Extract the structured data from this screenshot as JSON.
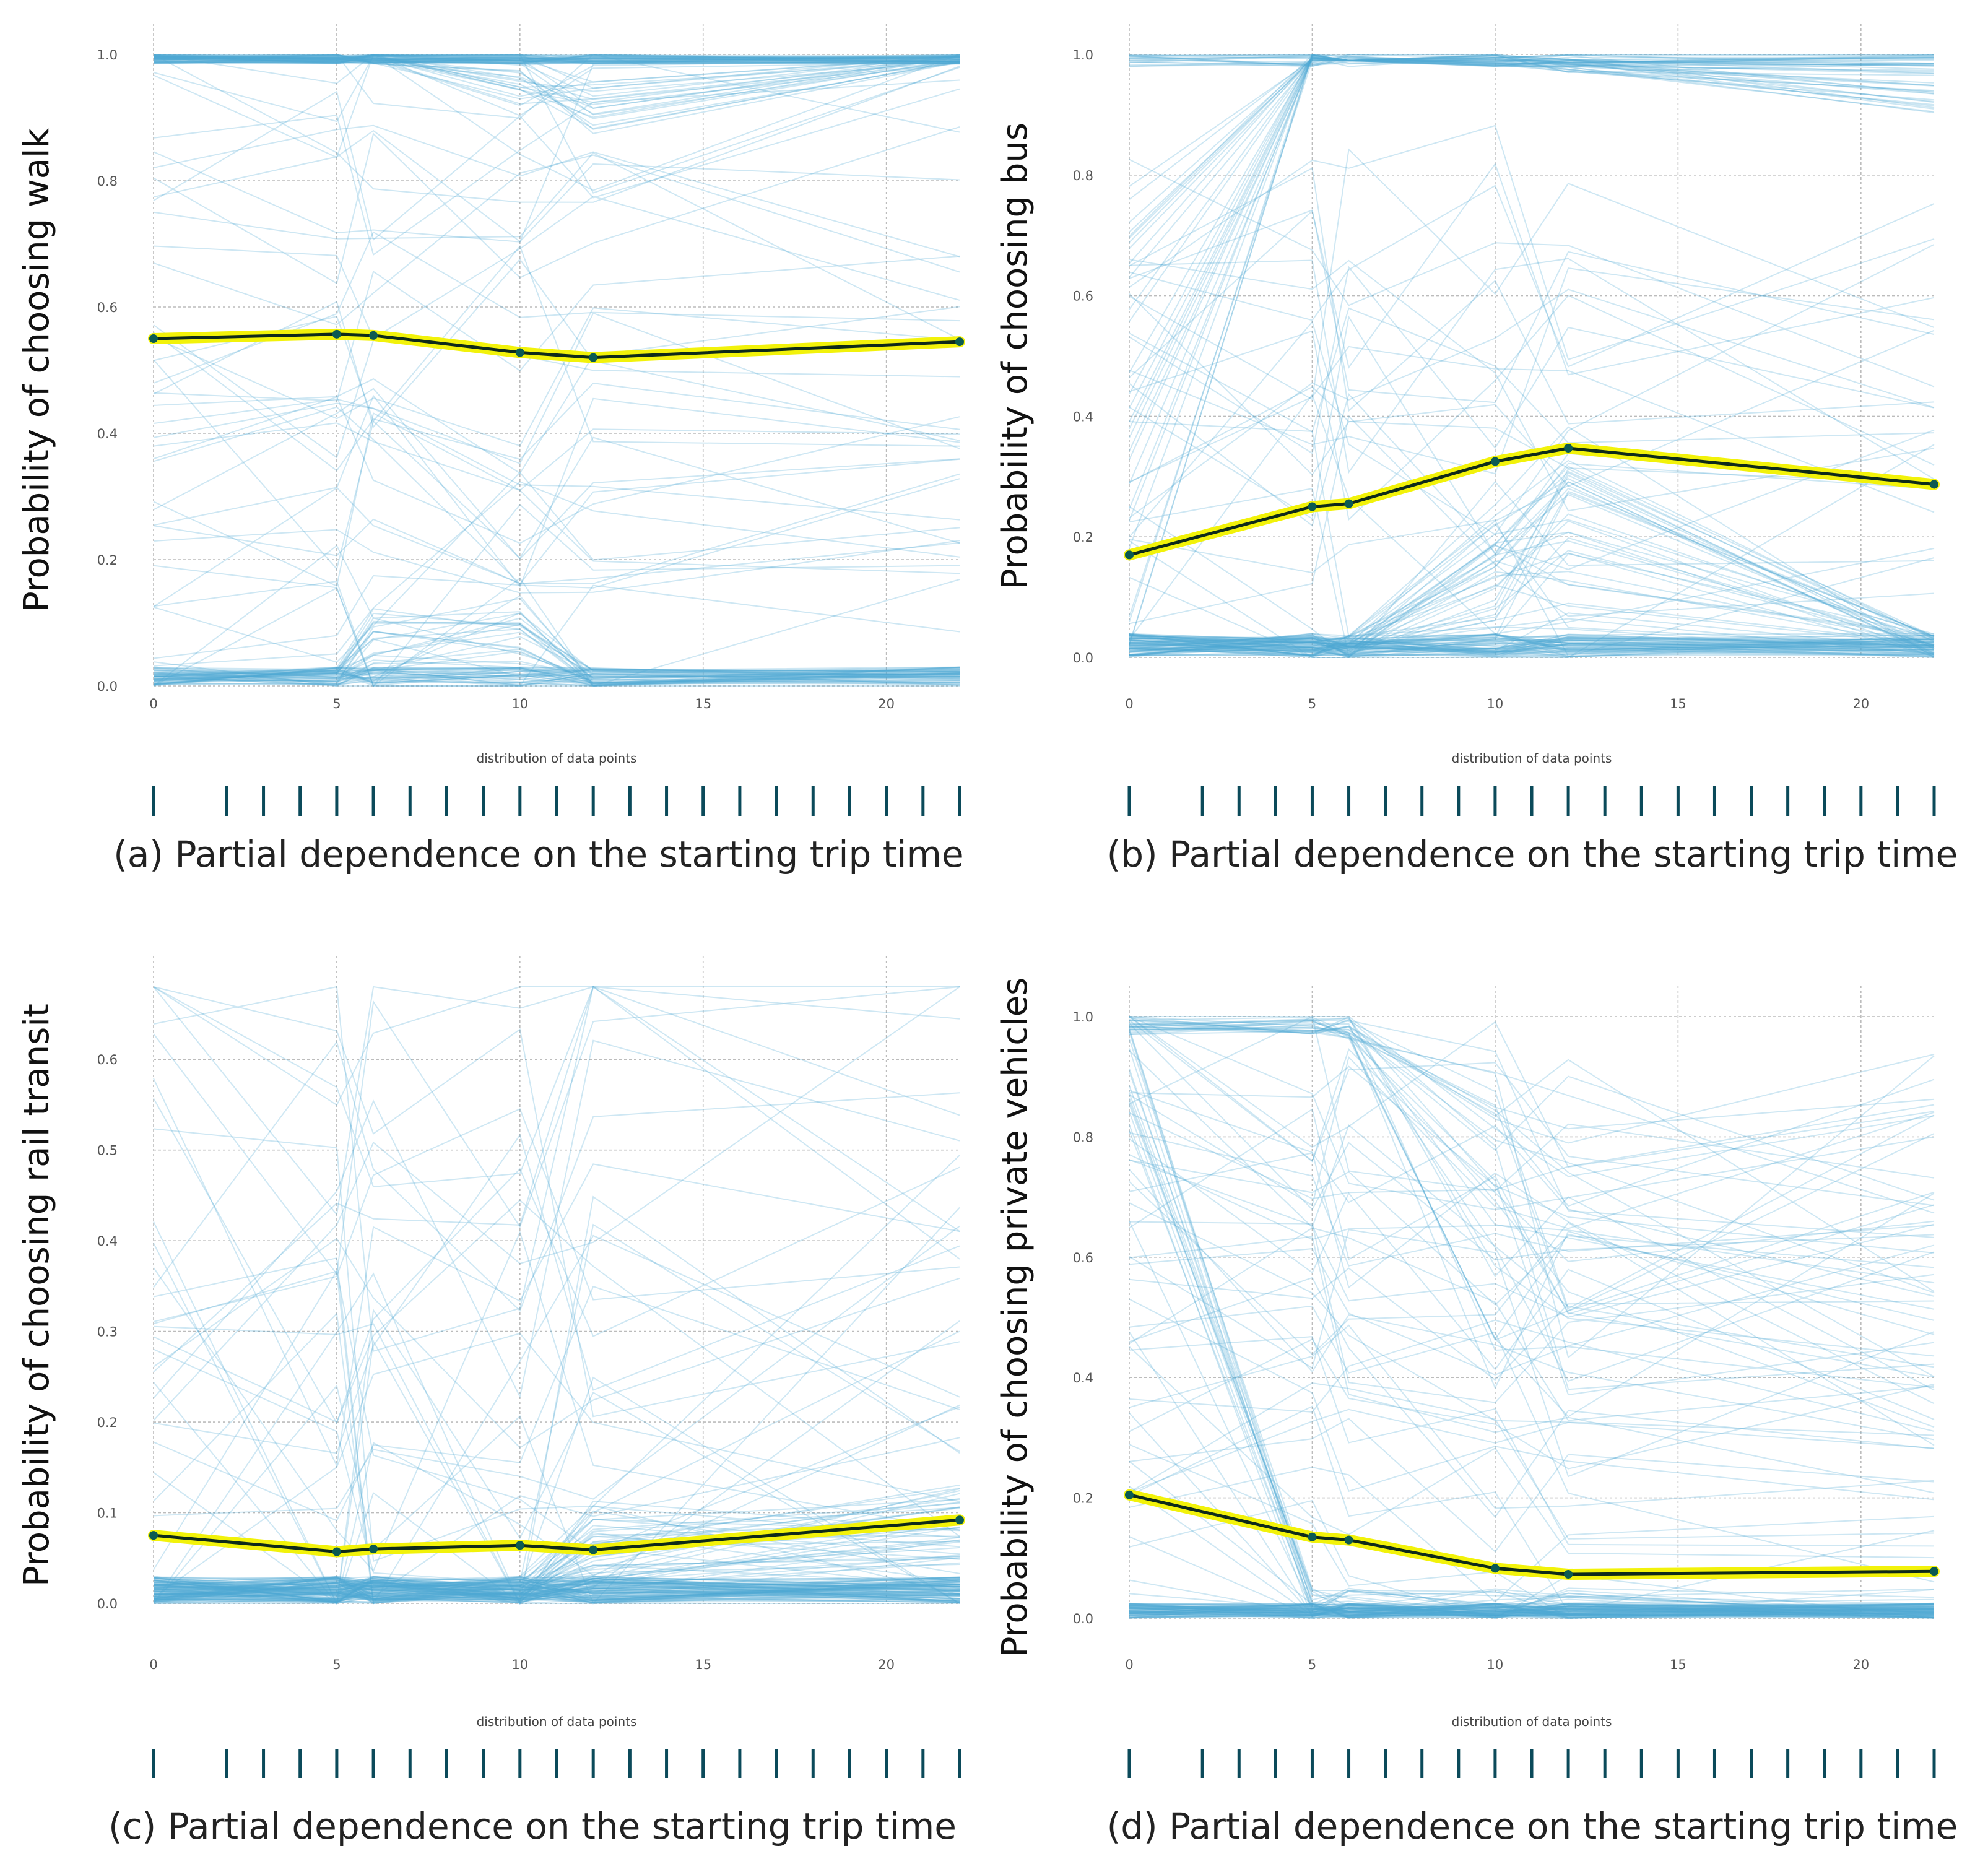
{
  "figure": {
    "ice_line_color": "#4fa8d5",
    "pd_line_color": "#0e2a1a",
    "pd_highlight_color": "#f2f20a",
    "pd_point_color": "#0b5a52",
    "rug_color": "#0b4a5a",
    "grid_color": "#bcbcbc"
  },
  "chart_data": [
    {
      "id": "a",
      "type": "line",
      "caption": "(a) Partial dependence on the starting trip time",
      "ylabel": "Probability of choosing walk",
      "xlabel": "distribution of data points",
      "x_grid_ticks": [
        0,
        5,
        10,
        15,
        20
      ],
      "x_tick_labels": [
        "0",
        "5",
        "10",
        "15",
        "20"
      ],
      "xlim": [
        0,
        22
      ],
      "y_ticks": [
        0.0,
        0.2,
        0.4,
        0.6,
        0.8,
        1.0
      ],
      "y_tick_labels": [
        "0.0",
        "0.2",
        "0.4",
        "0.6",
        "0.8",
        "1.0"
      ],
      "ylim": [
        0.0,
        1.0
      ],
      "rug_x": [
        0,
        2,
        3,
        4,
        5,
        6,
        7,
        8,
        9,
        10,
        11,
        12,
        13,
        14,
        15,
        16,
        17,
        18,
        19,
        20,
        21,
        22
      ],
      "series": [
        {
          "name": "partial dependence",
          "x": [
            0,
            5,
            6,
            10,
            12,
            22
          ],
          "y": [
            0.55,
            0.557,
            0.555,
            0.528,
            0.52,
            0.545
          ]
        }
      ],
      "ice_profile": "walk"
    },
    {
      "id": "b",
      "type": "line",
      "caption": "(b) Partial dependence on the starting trip time",
      "ylabel": "Probability of choosing bus",
      "xlabel": "distribution of data points",
      "x_grid_ticks": [
        0,
        5,
        10,
        15,
        20
      ],
      "x_tick_labels": [
        "0",
        "5",
        "10",
        "15",
        "20"
      ],
      "xlim": [
        0,
        22
      ],
      "y_ticks": [
        0.0,
        0.2,
        0.4,
        0.6,
        0.8,
        1.0
      ],
      "y_tick_labels": [
        "0.0",
        "0.2",
        "0.4",
        "0.6",
        "0.8",
        "1.0"
      ],
      "ylim": [
        0.0,
        1.0
      ],
      "rug_x": [
        0,
        2,
        3,
        4,
        5,
        6,
        7,
        8,
        9,
        10,
        11,
        12,
        13,
        14,
        15,
        16,
        17,
        18,
        19,
        20,
        21,
        22
      ],
      "series": [
        {
          "name": "partial dependence",
          "x": [
            0,
            5,
            6,
            10,
            12,
            22
          ],
          "y": [
            0.17,
            0.25,
            0.255,
            0.325,
            0.347,
            0.287
          ]
        }
      ],
      "ice_profile": "bus"
    },
    {
      "id": "c",
      "type": "line",
      "caption": "(c) Partial dependence on the starting trip time",
      "ylabel": "Probability of choosing rail transit",
      "xlabel": "distribution of data points",
      "x_grid_ticks": [
        0,
        5,
        10,
        15,
        20
      ],
      "x_tick_labels": [
        "0",
        "5",
        "10",
        "15",
        "20"
      ],
      "xlim": [
        0,
        22
      ],
      "y_ticks": [
        0.0,
        0.1,
        0.2,
        0.3,
        0.4,
        0.5,
        0.6
      ],
      "y_tick_labels": [
        "0.0",
        "0.1",
        "0.2",
        "0.3",
        "0.4",
        "0.5",
        "0.6"
      ],
      "ylim": [
        0.0,
        0.68
      ],
      "rug_x": [
        0,
        2,
        3,
        4,
        5,
        6,
        7,
        8,
        9,
        10,
        11,
        12,
        13,
        14,
        15,
        16,
        17,
        18,
        19,
        20,
        21,
        22
      ],
      "series": [
        {
          "name": "partial dependence",
          "x": [
            0,
            5,
            6,
            10,
            12,
            22
          ],
          "y": [
            0.075,
            0.057,
            0.06,
            0.064,
            0.059,
            0.092
          ]
        }
      ],
      "ice_profile": "rail"
    },
    {
      "id": "d",
      "type": "line",
      "caption": "(d) Partial dependence on the starting trip time",
      "ylabel": "Probability of choosing private vehicles",
      "xlabel": "distribution of data points",
      "x_grid_ticks": [
        0,
        5,
        10,
        15,
        20
      ],
      "x_tick_labels": [
        "0",
        "5",
        "10",
        "15",
        "20"
      ],
      "xlim": [
        0,
        22
      ],
      "y_ticks": [
        0.0,
        0.2,
        0.4,
        0.6,
        0.8,
        1.0
      ],
      "y_tick_labels": [
        "0.0",
        "0.2",
        "0.4",
        "0.6",
        "0.8",
        "1.0"
      ],
      "ylim": [
        0.0,
        1.0
      ],
      "rug_x": [
        0,
        2,
        3,
        4,
        5,
        6,
        7,
        8,
        9,
        10,
        11,
        12,
        13,
        14,
        15,
        16,
        17,
        18,
        19,
        20,
        21,
        22
      ],
      "series": [
        {
          "name": "partial dependence",
          "x": [
            0,
            5,
            6,
            10,
            12,
            22
          ],
          "y": [
            0.205,
            0.135,
            0.13,
            0.083,
            0.073,
            0.078
          ]
        }
      ],
      "ice_profile": "private"
    }
  ]
}
